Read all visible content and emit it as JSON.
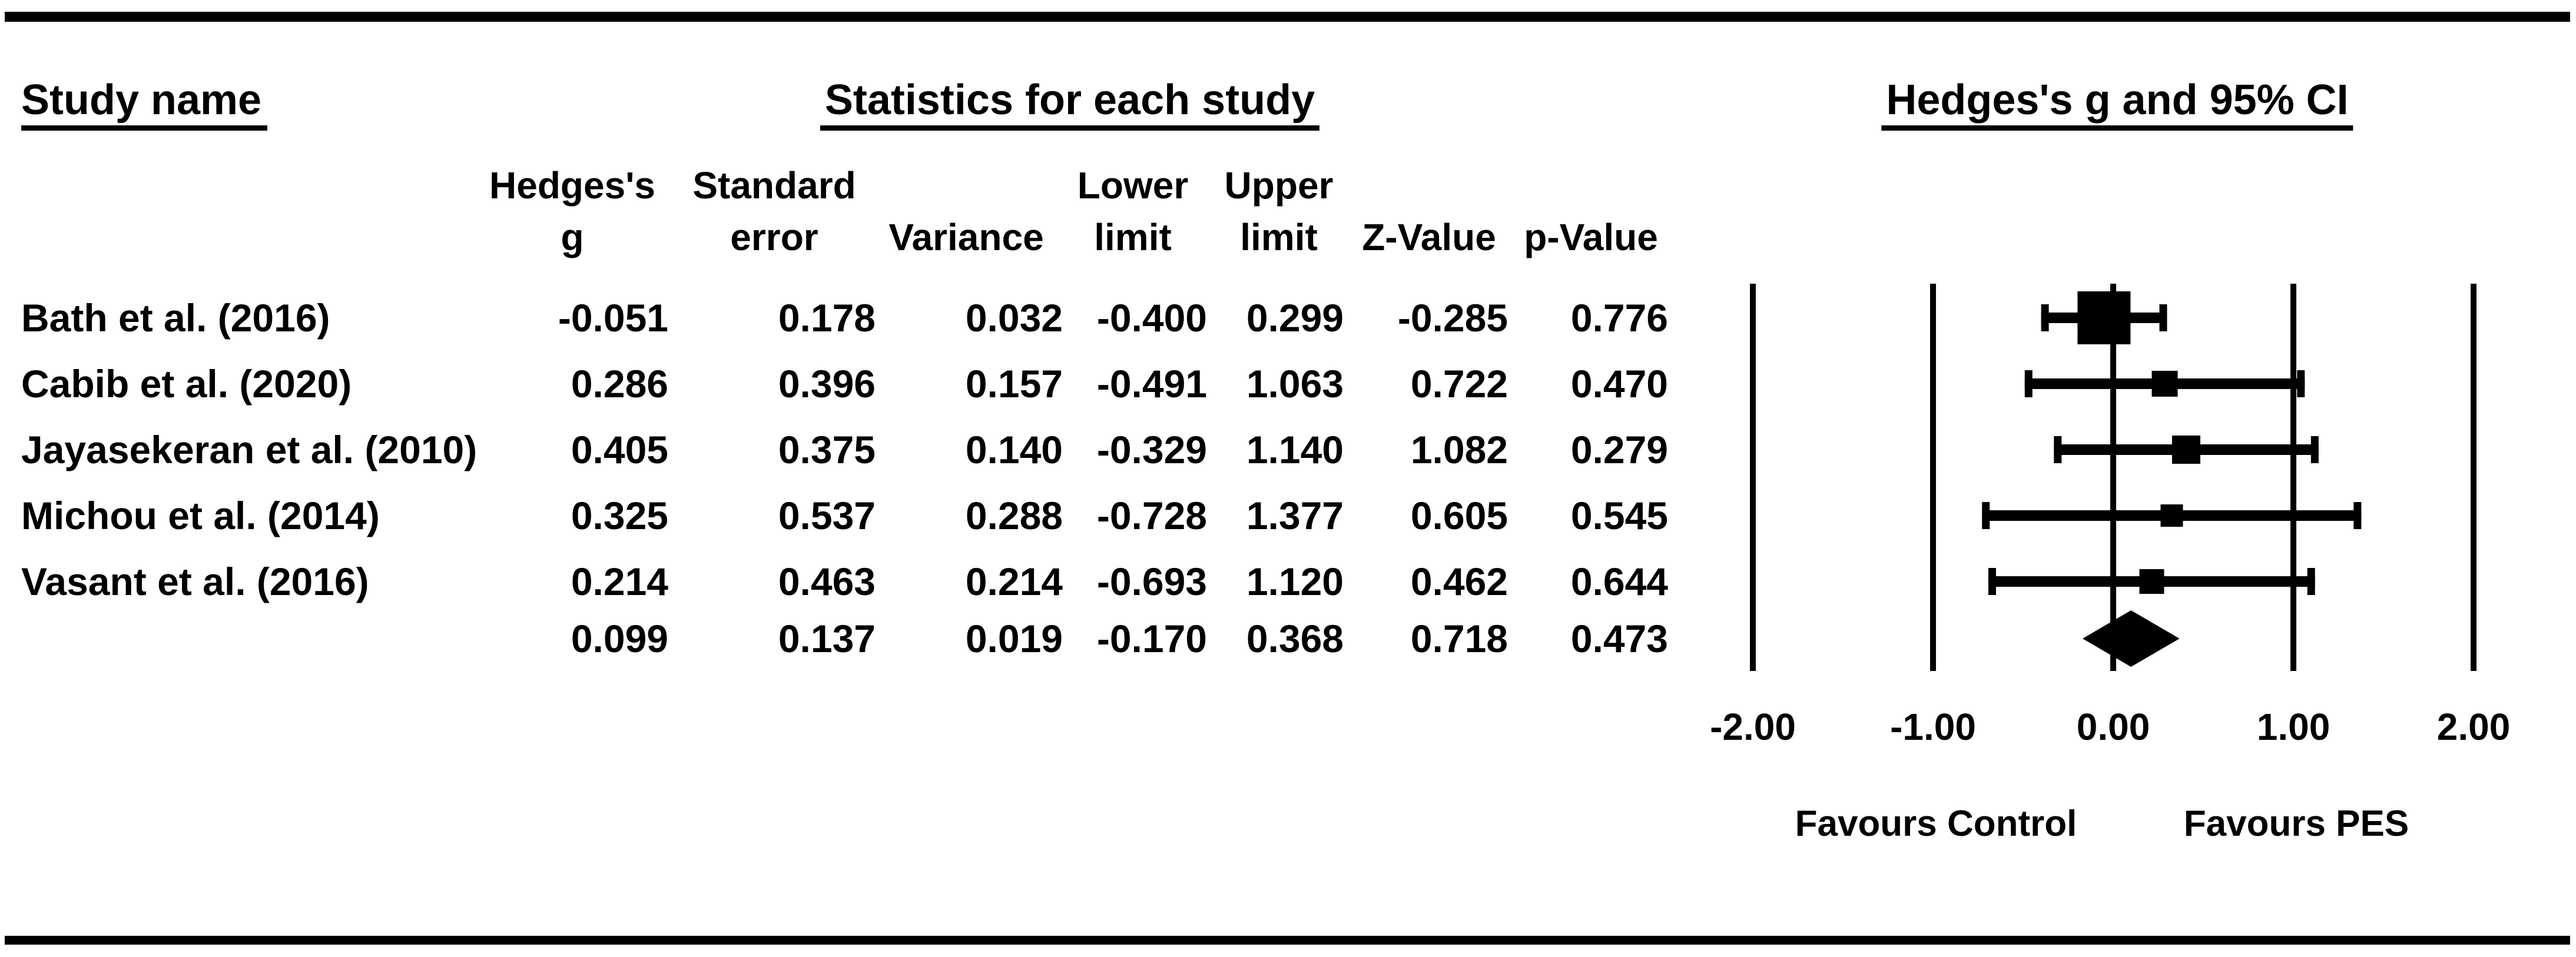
{
  "headers": {
    "study_name": "Study name",
    "statistics": "Statistics for each study",
    "ci": "Hedges's g and 95% CI"
  },
  "columns": [
    {
      "id": "hedges_g",
      "line1": "Hedges's",
      "line2": "g"
    },
    {
      "id": "standard_error",
      "line1": "Standard",
      "line2": "error"
    },
    {
      "id": "variance",
      "line1": "",
      "line2": "Variance"
    },
    {
      "id": "lower_limit",
      "line1": "Lower",
      "line2": "limit"
    },
    {
      "id": "upper_limit",
      "line1": "Upper",
      "line2": "limit"
    },
    {
      "id": "z_value",
      "line1": "",
      "line2": "Z-Value"
    },
    {
      "id": "p_value",
      "line1": "",
      "line2": "p-Value"
    }
  ],
  "colors": {
    "ink": "#000000",
    "background": "#ffffff"
  },
  "chart_data": {
    "type": "forest",
    "effect_measure": "Hedges's g",
    "studies": [
      {
        "name": "Bath et al. (2016)",
        "hedges_g": "-0.051",
        "standard_error": "0.178",
        "variance": "0.032",
        "lower_limit": "-0.400",
        "upper_limit": "0.299",
        "z_value": "-0.285",
        "p_value": "0.776",
        "marker_size": 90
      },
      {
        "name": "Cabib et al. (2020)",
        "hedges_g": "0.286",
        "standard_error": "0.396",
        "variance": "0.157",
        "lower_limit": "-0.491",
        "upper_limit": "1.063",
        "z_value": "0.722",
        "p_value": "0.470",
        "marker_size": 44
      },
      {
        "name": "Jayasekeran et al. (2010)",
        "hedges_g": "0.405",
        "standard_error": "0.375",
        "variance": "0.140",
        "lower_limit": "-0.329",
        "upper_limit": "1.140",
        "z_value": "1.082",
        "p_value": "0.279",
        "marker_size": 48
      },
      {
        "name": "Michou et al. (2014)",
        "hedges_g": "0.325",
        "standard_error": "0.537",
        "variance": "0.288",
        "lower_limit": "-0.728",
        "upper_limit": "1.377",
        "z_value": "0.605",
        "p_value": "0.545",
        "marker_size": 38
      },
      {
        "name": "Vasant et al. (2016)",
        "hedges_g": "0.214",
        "standard_error": "0.463",
        "variance": "0.214",
        "lower_limit": "-0.693",
        "upper_limit": "1.120",
        "z_value": "0.462",
        "p_value": "0.644",
        "marker_size": 42
      }
    ],
    "overall": {
      "name": "",
      "hedges_g": "0.099",
      "standard_error": "0.137",
      "variance": "0.019",
      "lower_limit": "-0.170",
      "upper_limit": "0.368",
      "z_value": "0.718",
      "p_value": "0.473"
    },
    "axis": {
      "xlim": [
        -2,
        2
      ],
      "ticks": [
        -2,
        -1,
        0,
        1,
        2
      ],
      "tick_labels": [
        "-2.00",
        "-1.00",
        "0.00",
        "1.00",
        "2.00"
      ],
      "grid": true
    },
    "xlabel_left": "Favours Control",
    "xlabel_right": "Favours PES"
  }
}
